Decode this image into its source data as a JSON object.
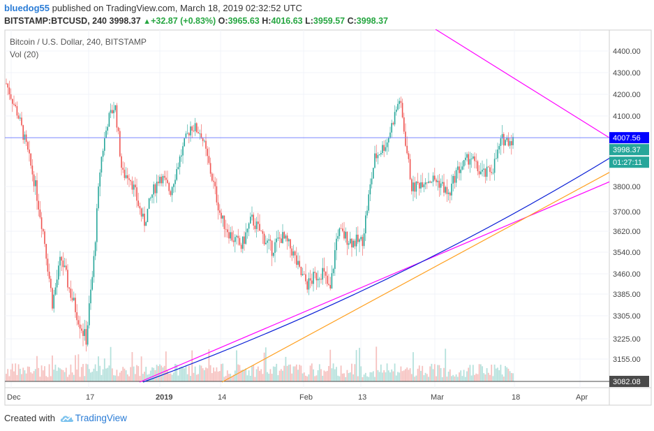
{
  "header": {
    "author": "bluedog55",
    "published_text": "published on TradingView.com, March 18, 2019 02:32:52 UTC",
    "symbol": "BITSTAMP:BTCUSD, 240",
    "last_price": "3998.37",
    "change": "+32.87 (+0.83%)",
    "open_label": "O:",
    "open": "3965.63",
    "high_label": "H:",
    "high": "4016.63",
    "low_label": "L:",
    "low": "3959.57",
    "close_label": "C:",
    "close": "3998.37"
  },
  "legend": {
    "title": "Bitcoin / U.S. Dollar, 240, BITSTAMP",
    "volume": "Vol (20)"
  },
  "footer": {
    "created_with": "Created with",
    "brand": "TradingView",
    "logo_icon": "tradingview-cloud-icon"
  },
  "colors": {
    "up": "#26a69a",
    "down": "#ef5350",
    "trend_magenta": "#ff00ff",
    "trend_blue": "#0a1fd6",
    "trend_orange": "#ffa020",
    "hline": "#7a86ff",
    "label_blue": "#0000ff",
    "label_teal": "#26a69a",
    "label_dark": "#4a4a4a"
  },
  "chart_data": {
    "type": "candlestick",
    "price_axis": {
      "ticks": [
        "4400.00",
        "4300.00",
        "4200.00",
        "4100.00",
        "3800.00",
        "3700.00",
        "3620.00",
        "3540.00",
        "3460.00",
        "3385.00",
        "3305.00",
        "3225.00",
        "3155.00"
      ],
      "ylim": [
        3075,
        4480
      ]
    },
    "time_axis": {
      "ticks": [
        "Dec",
        "17",
        "2019",
        "14",
        "Feb",
        "13",
        "Mar",
        "18",
        "Apr"
      ]
    },
    "price_labels": {
      "horizontal_line": "4007.56",
      "last_price": "3998.37",
      "countdown": "01:27:11",
      "volume_value": "3082.08"
    },
    "price_path": [
      [
        "Dec",
        4250
      ],
      [
        "Dec",
        4100
      ],
      [
        "Dec",
        3960
      ],
      [
        "Dec",
        3800
      ],
      [
        "Dec",
        3600
      ],
      [
        "Dec",
        3350
      ],
      [
        "Dec",
        3520
      ],
      [
        "Dec",
        3400
      ],
      [
        "Dec",
        3300
      ],
      [
        "17",
        3220
      ],
      [
        "17",
        3480
      ],
      [
        "17",
        3900
      ],
      [
        "17",
        4080
      ],
      [
        "17",
        4150
      ],
      [
        "17",
        3850
      ],
      [
        "17",
        3850
      ],
      [
        "17",
        3750
      ],
      [
        "17",
        3650
      ],
      [
        "17",
        3760
      ],
      [
        "2019",
        3850
      ],
      [
        "2019",
        3780
      ],
      [
        "2019",
        3930
      ],
      [
        "2019",
        4060
      ],
      [
        "2019",
        4030
      ],
      [
        "2019",
        3850
      ],
      [
        "14",
        3670
      ],
      [
        "14",
        3600
      ],
      [
        "14",
        3560
      ],
      [
        "14",
        3670
      ],
      [
        "14",
        3610
      ],
      [
        "14",
        3550
      ],
      [
        "14",
        3600
      ],
      [
        "14",
        3550
      ],
      [
        "Feb",
        3460
      ],
      [
        "Feb",
        3420
      ],
      [
        "Feb",
        3450
      ],
      [
        "Feb",
        3470
      ],
      [
        "Feb",
        3390
      ],
      [
        "Feb",
        3620
      ],
      [
        "Feb",
        3600
      ],
      [
        "Feb",
        3580
      ],
      [
        "13",
        3580
      ],
      [
        "13",
        3920
      ],
      [
        "13",
        3990
      ],
      [
        "13",
        4180
      ],
      [
        "13",
        3790
      ],
      [
        "13",
        3830
      ],
      [
        "Mar",
        3830
      ],
      [
        "Mar",
        3810
      ],
      [
        "Mar",
        3760
      ],
      [
        "Mar",
        3860
      ],
      [
        "Mar",
        3890
      ],
      [
        "Mar",
        3930
      ],
      [
        "Mar",
        3870
      ],
      [
        "Mar",
        3850
      ],
      [
        "18",
        3880
      ],
      [
        "18",
        4000
      ],
      [
        "18",
        3998.37
      ]
    ]
  }
}
